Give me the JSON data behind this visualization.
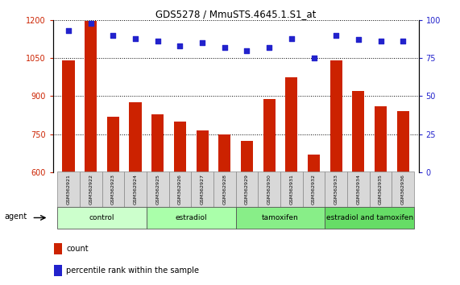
{
  "title": "GDS5278 / MmuSTS.4645.1.S1_at",
  "samples": [
    "GSM362921",
    "GSM362922",
    "GSM362923",
    "GSM362924",
    "GSM362925",
    "GSM362926",
    "GSM362927",
    "GSM362928",
    "GSM362929",
    "GSM362930",
    "GSM362931",
    "GSM362932",
    "GSM362933",
    "GSM362934",
    "GSM362935",
    "GSM362936"
  ],
  "counts": [
    1040,
    1195,
    820,
    875,
    830,
    800,
    765,
    748,
    725,
    890,
    975,
    670,
    1040,
    920,
    860,
    840
  ],
  "percentiles": [
    93,
    98,
    90,
    88,
    86,
    83,
    85,
    82,
    80,
    82,
    88,
    75,
    90,
    87,
    86,
    86
  ],
  "bar_color": "#cc2200",
  "dot_color": "#2222cc",
  "ylim_left": [
    600,
    1200
  ],
  "ylim_right": [
    0,
    100
  ],
  "yticks_left": [
    600,
    750,
    900,
    1050,
    1200
  ],
  "yticks_right": [
    0,
    25,
    50,
    75,
    100
  ],
  "groups": [
    {
      "label": "control",
      "start": 0,
      "end": 4,
      "color": "#ccffcc"
    },
    {
      "label": "estradiol",
      "start": 4,
      "end": 8,
      "color": "#aaffaa"
    },
    {
      "label": "tamoxifen",
      "start": 8,
      "end": 12,
      "color": "#88ee88"
    },
    {
      "label": "estradiol and tamoxifen",
      "start": 12,
      "end": 16,
      "color": "#66dd66"
    }
  ],
  "agent_label": "agent",
  "legend_count_label": "count",
  "legend_percentile_label": "percentile rank within the sample",
  "bar_width": 0.55,
  "xlim": [
    -0.7,
    15.7
  ]
}
